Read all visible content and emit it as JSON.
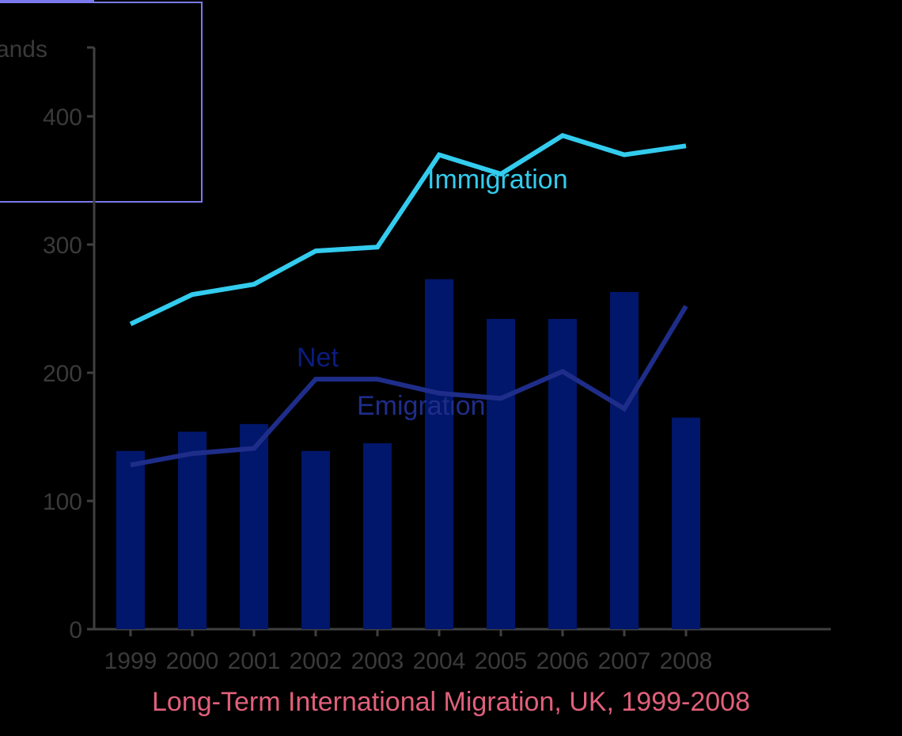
{
  "chart_data": {
    "type": "bar",
    "title": "Long-Term International Migration, UK, 1999-2008",
    "ylabel": "Thousands",
    "ylim": [
      0,
      450
    ],
    "yticks": [
      "0",
      "100",
      "200",
      "300",
      "400"
    ],
    "categories": [
      "1999",
      "2000",
      "2001",
      "2002",
      "2003",
      "2004",
      "2005",
      "2006",
      "2007",
      "2008"
    ],
    "series": [
      {
        "name": "Net",
        "type": "bar",
        "values": [
          139,
          154,
          160,
          139,
          145,
          273,
          242,
          242,
          263,
          165
        ]
      },
      {
        "name": "Immigration",
        "type": "line",
        "values": [
          238,
          261,
          269,
          295,
          298,
          370,
          355,
          385,
          370,
          377
        ]
      },
      {
        "name": "Emigration",
        "type": "line",
        "values": [
          128,
          137,
          141,
          195,
          195,
          184,
          180,
          201,
          172,
          252
        ]
      }
    ],
    "grid": false,
    "legend": "inline labels"
  },
  "colors": {
    "background": "#000000",
    "net_bars": "#00176b",
    "immigration": "#33ccee",
    "emigration": "#1f2d8a",
    "net_label": "#0a1c80",
    "axis": "#404040",
    "tick_text": "#3a3a3a",
    "title": "#e0607a",
    "overlay_box": "#7a7aee"
  }
}
